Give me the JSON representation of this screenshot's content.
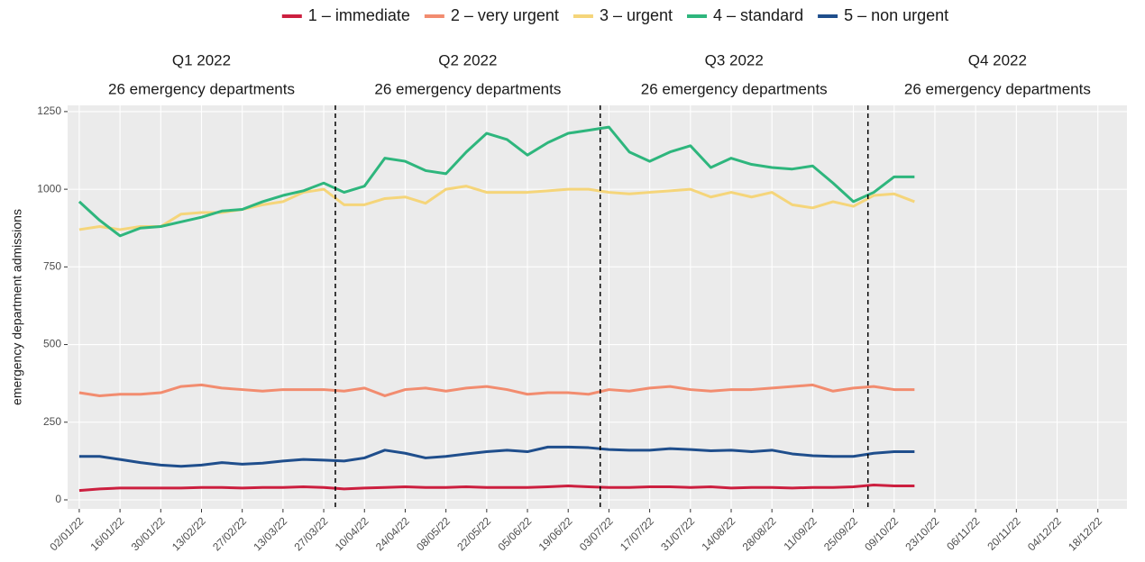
{
  "chart_data": {
    "type": "line",
    "y_label": "emergency department admissions",
    "legend": "top",
    "grid": true,
    "x": [
      "2022-01-02",
      "2022-01-09",
      "2022-01-16",
      "2022-01-23",
      "2022-01-30",
      "2022-02-06",
      "2022-02-13",
      "2022-02-20",
      "2022-02-27",
      "2022-03-06",
      "2022-03-13",
      "2022-03-20",
      "2022-03-27",
      "2022-04-03",
      "2022-04-10",
      "2022-04-17",
      "2022-04-24",
      "2022-05-01",
      "2022-05-08",
      "2022-05-15",
      "2022-05-22",
      "2022-05-29",
      "2022-06-05",
      "2022-06-12",
      "2022-06-19",
      "2022-06-26",
      "2022-07-03",
      "2022-07-10",
      "2022-07-17",
      "2022-07-24",
      "2022-07-31",
      "2022-08-07",
      "2022-08-14",
      "2022-08-21",
      "2022-08-28",
      "2022-09-04",
      "2022-09-11",
      "2022-09-18",
      "2022-09-25",
      "2022-10-02",
      "2022-10-09",
      "2022-10-16"
    ],
    "series": [
      {
        "name": "1 – immediate",
        "color": "#cc1f3f",
        "values": [
          30,
          35,
          38,
          38,
          38,
          38,
          40,
          40,
          38,
          40,
          40,
          42,
          40,
          35,
          38,
          40,
          42,
          40,
          40,
          42,
          40,
          40,
          40,
          42,
          45,
          42,
          40,
          40,
          42,
          42,
          40,
          42,
          38,
          40,
          40,
          38,
          40,
          40,
          42,
          48,
          45,
          45
        ]
      },
      {
        "name": "2 – very urgent",
        "color": "#f28c6f",
        "values": [
          345,
          335,
          340,
          340,
          345,
          365,
          370,
          360,
          355,
          350,
          355,
          355,
          355,
          350,
          360,
          335,
          355,
          360,
          350,
          360,
          365,
          355,
          340,
          345,
          345,
          340,
          355,
          350,
          360,
          365,
          355,
          350,
          355,
          355,
          360,
          365,
          370,
          350,
          360,
          365,
          355,
          355
        ]
      },
      {
        "name": "3 – urgent",
        "color": "#f5d57a",
        "values": [
          870,
          880,
          870,
          880,
          880,
          920,
          925,
          925,
          935,
          950,
          960,
          990,
          1000,
          950,
          950,
          970,
          975,
          955,
          1000,
          1010,
          990,
          990,
          990,
          995,
          1000,
          1000,
          990,
          985,
          990,
          995,
          1000,
          975,
          990,
          975,
          990,
          950,
          940,
          960,
          945,
          980,
          985,
          960
        ]
      },
      {
        "name": "4 – standard",
        "color": "#2eb67d",
        "values": [
          960,
          900,
          850,
          875,
          880,
          895,
          910,
          930,
          935,
          960,
          980,
          995,
          1020,
          990,
          1010,
          1100,
          1090,
          1060,
          1050,
          1120,
          1180,
          1160,
          1110,
          1150,
          1180,
          1190,
          1200,
          1120,
          1090,
          1120,
          1140,
          1070,
          1100,
          1080,
          1070,
          1065,
          1075,
          1020,
          960,
          990,
          1040,
          1040
        ]
      },
      {
        "name": "5 – non urgent",
        "color": "#1f4e8c",
        "values": [
          140,
          140,
          130,
          120,
          112,
          108,
          112,
          120,
          115,
          118,
          125,
          130,
          128,
          125,
          135,
          160,
          150,
          135,
          140,
          148,
          155,
          160,
          155,
          170,
          170,
          168,
          162,
          160,
          160,
          165,
          162,
          158,
          160,
          155,
          160,
          148,
          142,
          140,
          140,
          150,
          155,
          155
        ]
      }
    ],
    "panels": [
      {
        "title": "Q1 2022",
        "subtitle": "26 emergency departments"
      },
      {
        "title": "Q2 2022",
        "subtitle": "26 emergency departments"
      },
      {
        "title": "Q3 2022",
        "subtitle": "26 emergency departments"
      },
      {
        "title": "Q4 2022",
        "subtitle": "26 emergency departments"
      }
    ],
    "vlines": [
      "2022-03-31",
      "2022-06-30",
      "2022-09-30"
    ],
    "xlim": [
      "2021-12-29",
      "2022-12-28"
    ],
    "ylim": [
      -29,
      1270
    ],
    "yticks": [
      0,
      250,
      500,
      750,
      1000,
      1250
    ],
    "xticks": [
      {
        "value": "2022-01-02",
        "label": "02/01/22"
      },
      {
        "value": "2022-01-16",
        "label": "16/01/22"
      },
      {
        "value": "2022-01-30",
        "label": "30/01/22"
      },
      {
        "value": "2022-02-13",
        "label": "13/02/22"
      },
      {
        "value": "2022-02-27",
        "label": "27/02/22"
      },
      {
        "value": "2022-03-13",
        "label": "13/03/22"
      },
      {
        "value": "2022-03-27",
        "label": "27/03/22"
      },
      {
        "value": "2022-04-10",
        "label": "10/04/22"
      },
      {
        "value": "2022-04-24",
        "label": "24/04/22"
      },
      {
        "value": "2022-05-08",
        "label": "08/05/22"
      },
      {
        "value": "2022-05-22",
        "label": "22/05/22"
      },
      {
        "value": "2022-06-05",
        "label": "05/06/22"
      },
      {
        "value": "2022-06-19",
        "label": "19/06/22"
      },
      {
        "value": "2022-07-03",
        "label": "03/07/22"
      },
      {
        "value": "2022-07-17",
        "label": "17/07/22"
      },
      {
        "value": "2022-07-31",
        "label": "31/07/22"
      },
      {
        "value": "2022-08-14",
        "label": "14/08/22"
      },
      {
        "value": "2022-08-28",
        "label": "28/08/22"
      },
      {
        "value": "2022-09-11",
        "label": "11/09/22"
      },
      {
        "value": "2022-09-25",
        "label": "25/09/22"
      },
      {
        "value": "2022-10-09",
        "label": "09/10/22"
      },
      {
        "value": "2022-10-23",
        "label": "23/10/22"
      },
      {
        "value": "2022-11-06",
        "label": "06/11/22"
      },
      {
        "value": "2022-11-20",
        "label": "20/11/22"
      },
      {
        "value": "2022-12-04",
        "label": "04/12/22"
      },
      {
        "value": "2022-12-18",
        "label": "18/12/22"
      }
    ]
  }
}
